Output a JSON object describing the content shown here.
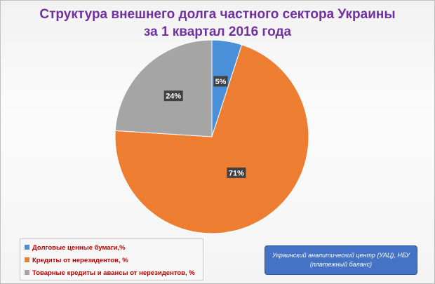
{
  "title": {
    "line1": "Структура внешнего долга частного сектора Украины",
    "line2": "за 1 квартал 2016 года"
  },
  "chart_data": {
    "type": "pie",
    "title": "Структура внешнего долга частного сектора Украины за 1 квартал 2016 года",
    "series": [
      {
        "name": "Долговые ценные бумаги,%",
        "value": 5,
        "label": "5%",
        "color": "#4a90d9"
      },
      {
        "name": "Кредиты от нерезидентов, %",
        "value": 71,
        "label": "71%",
        "color": "#ed7d31"
      },
      {
        "name": "Товарные кредиты и авансы от нерезидентов, %",
        "value": 24,
        "label": "24%",
        "color": "#a5a5a5"
      }
    ],
    "legend_position": "bottom-left"
  },
  "source": {
    "line1": "Украинский аналитический центр (УАЦ), НБУ",
    "line2": "(платежный баланс)"
  },
  "colors": {
    "title": "#7030a0",
    "legend_text": "#c00000",
    "source_bg": "#4472c4"
  }
}
